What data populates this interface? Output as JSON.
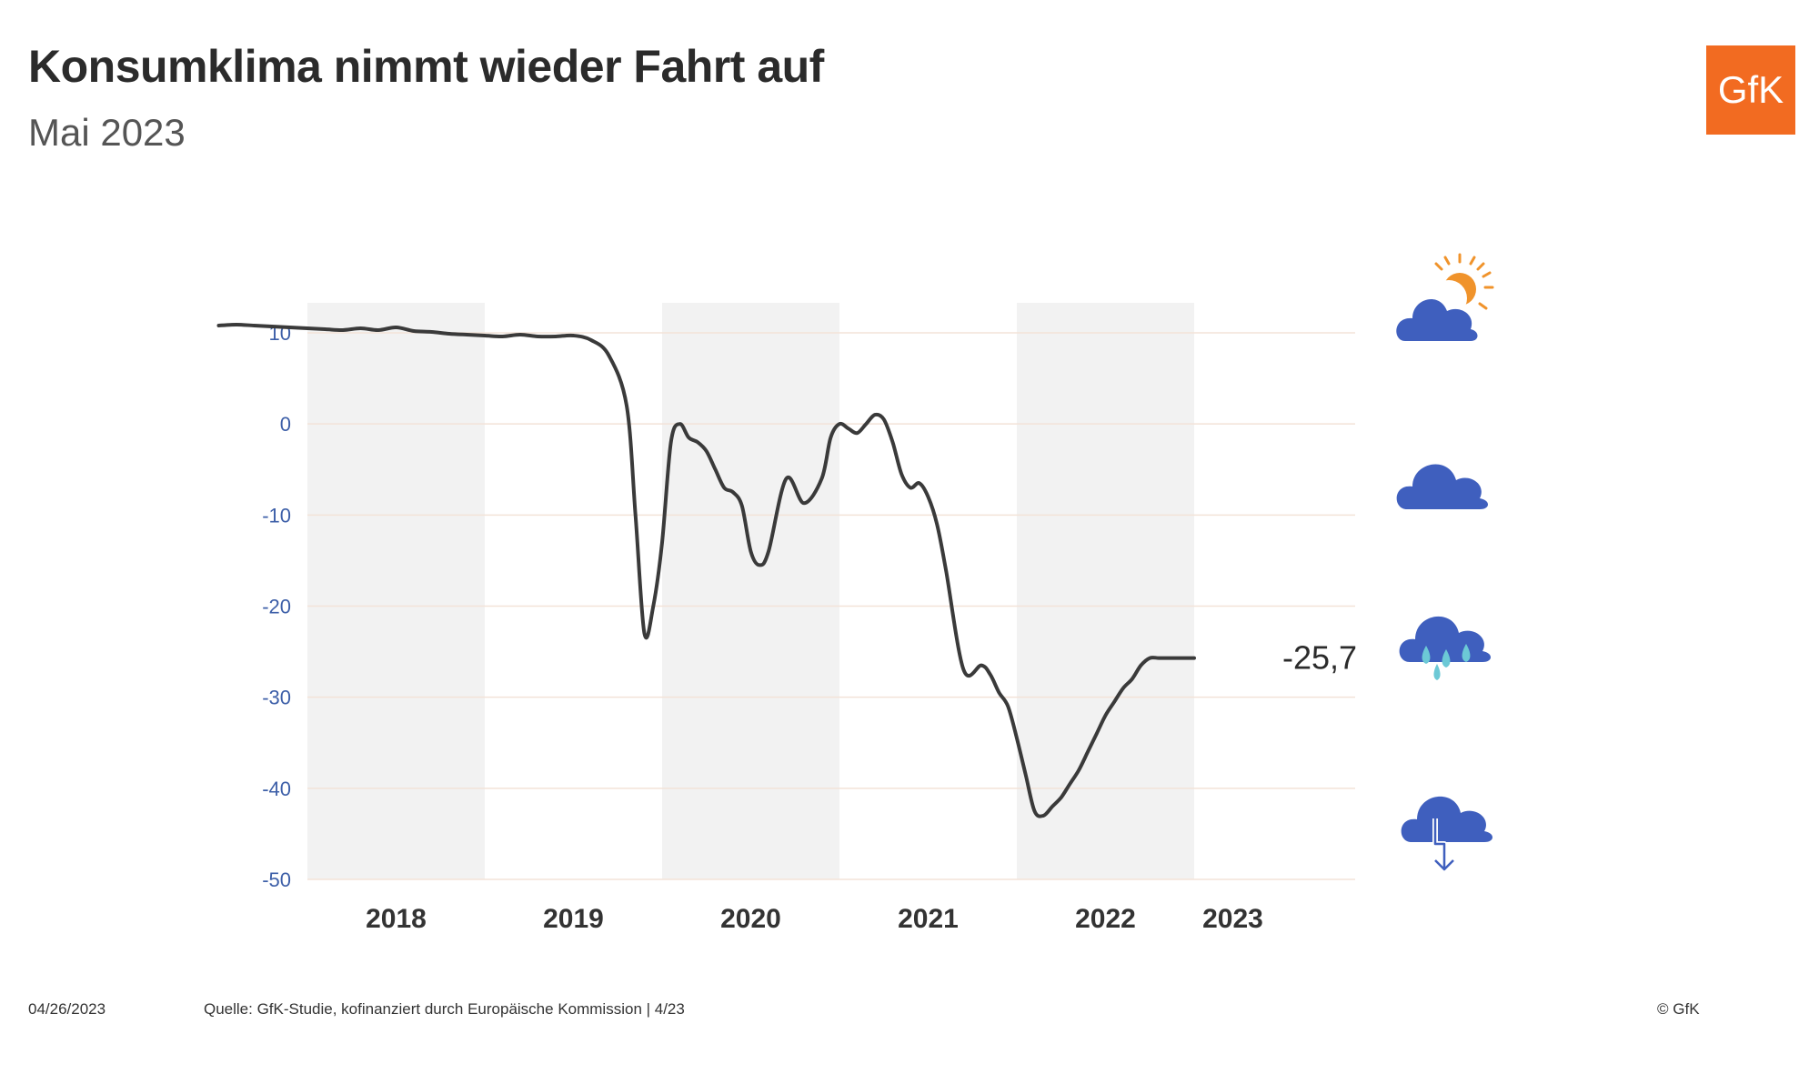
{
  "header": {
    "title": "Konsumklima nimmt wieder Fahrt auf",
    "subtitle": "Mai 2023"
  },
  "logo": {
    "text": "GfK",
    "color": "#f26b21"
  },
  "footer": {
    "date": "04/26/2023",
    "source": "Quelle: GfK-Studie, kofinanziert durch Europäische Kommission | 4/23",
    "copyright": "© GfK"
  },
  "chart_data": {
    "type": "line",
    "xlim": [
      2017.5,
      2023.4
    ],
    "ylim": [
      -50,
      12
    ],
    "y_ticks": [
      10,
      0,
      -10,
      -20,
      -30,
      -40,
      -50
    ],
    "y_tick_labels": [
      "10",
      "0",
      "-10",
      "-20",
      "-30",
      "-40",
      "-50"
    ],
    "x_tick_labels": [
      "2018",
      "2019",
      "2020",
      "2021",
      "2022",
      "2023"
    ],
    "x_tick_positions": [
      2018,
      2019,
      2020,
      2021,
      2022,
      2023
    ],
    "grid": true,
    "shaded_years": [
      2018,
      2020,
      2022
    ],
    "end_label": "-25,7",
    "line_color": "#3a3a3a",
    "series": [
      {
        "x": [
          2017.5,
          2017.6,
          2017.7,
          2017.8,
          2017.9,
          2018.0,
          2018.1,
          2018.2,
          2018.3,
          2018.4,
          2018.5,
          2018.6,
          2018.7,
          2018.8,
          2018.9,
          2019.0,
          2019.1,
          2019.2,
          2019.3,
          2019.4,
          2019.5,
          2019.6,
          2019.7,
          2019.8,
          2019.85,
          2019.9,
          2019.95,
          2020.0,
          2020.05,
          2020.1,
          2020.15,
          2020.2,
          2020.25,
          2020.3,
          2020.35,
          2020.4,
          2020.45,
          2020.5,
          2020.55,
          2020.6,
          2020.7,
          2020.8,
          2020.9,
          2020.95,
          2021.0,
          2021.05,
          2021.1,
          2021.15,
          2021.2,
          2021.25,
          2021.3,
          2021.35,
          2021.4,
          2021.45,
          2021.5,
          2021.55,
          2021.6,
          2021.7,
          2021.8,
          2021.85,
          2021.9,
          2021.95,
          2022.0,
          2022.05,
          2022.1,
          2022.15,
          2022.2,
          2022.25,
          2022.3,
          2022.35,
          2022.4,
          2022.45,
          2022.5,
          2022.55,
          2022.6,
          2022.65,
          2022.7,
          2022.75,
          2022.8,
          2022.85,
          2022.9,
          2022.95,
          2023.0
        ],
        "y": [
          10.8,
          10.9,
          10.8,
          10.7,
          10.6,
          10.5,
          10.4,
          10.3,
          10.5,
          10.3,
          10.6,
          10.2,
          10.1,
          9.9,
          9.8,
          9.7,
          9.6,
          9.8,
          9.6,
          9.6,
          9.7,
          9.2,
          7.5,
          2.0,
          -10.0,
          -23.0,
          -20.0,
          -13.0,
          -2.0,
          0.0,
          -1.5,
          -2.0,
          -3.0,
          -5.0,
          -7.0,
          -7.5,
          -9.0,
          -14.0,
          -15.5,
          -14.0,
          -6.0,
          -8.7,
          -6.0,
          -1.5,
          0.0,
          -0.5,
          -1.0,
          0.0,
          1.0,
          0.5,
          -2.0,
          -5.5,
          -7.0,
          -6.5,
          -8.0,
          -11.0,
          -16.0,
          -27.0,
          -26.5,
          -27.5,
          -29.5,
          -31.0,
          -34.5,
          -38.5,
          -42.5,
          -43.0,
          -42.0,
          -41.0,
          -39.5,
          -38.0,
          -36.0,
          -34.0,
          -32.0,
          -30.5,
          -29.0,
          -28.0,
          -26.5,
          -25.7,
          -25.7,
          -25.7,
          -25.7,
          -25.7,
          -25.7
        ]
      }
    ]
  },
  "icons": [
    "sun-cloud-icon",
    "cloud-icon",
    "rain-cloud-icon",
    "thunder-cloud-icon"
  ],
  "colors": {
    "cloud": "#3f5fbe",
    "sun": "#f0932b",
    "rain": "#6cc9d6",
    "shade": "#f2f2f2",
    "grid": "#f3e3d8",
    "ytick": "#3d5fa8"
  }
}
